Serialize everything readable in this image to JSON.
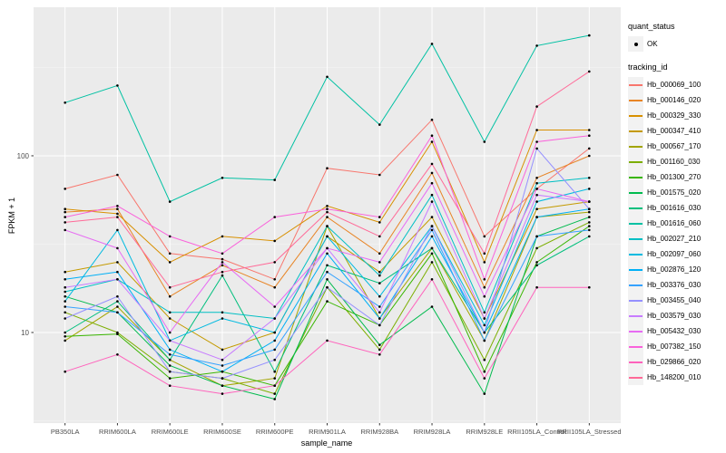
{
  "figure": {
    "background": "#FFFFFF",
    "panel_background": "#EBEBEB",
    "grid_major_color": "#FFFFFF",
    "grid_minor_color": "#FFFFFF",
    "axis_text_color": "#4D4D4D",
    "tick_color": "#333333"
  },
  "chart_data": {
    "type": "line",
    "title": "",
    "xlabel": "sample_name",
    "ylabel": "FPKM + 1",
    "y_scale": "log10",
    "y_ticks": [
      10,
      100
    ],
    "y_minor_ticks": [
      3.162,
      31.62,
      316.2
    ],
    "ylim": [
      3.07,
      693
    ],
    "grid": true,
    "legend_position": "right",
    "point_color": "#000000",
    "categories": [
      "PB350LA",
      "RRIM600LA",
      "RRIM600LE",
      "RRIM600SE",
      "RRIM600PE",
      "RRIM901LA",
      "RRIM928BA",
      "RRIM928LA",
      "RRIM928LE",
      "RRII105LA_Control",
      "RRII105LA_Stressed"
    ],
    "series": [
      {
        "name": "Hb_000069_100",
        "color": "#F8766D",
        "values": [
          65,
          78,
          28,
          26,
          20,
          85,
          78,
          160,
          35,
          65,
          110
        ]
      },
      {
        "name": "Hb_000146_020",
        "color": "#E88526",
        "values": [
          48,
          50,
          16,
          24,
          18,
          45,
          28,
          80,
          18,
          75,
          100
        ]
      },
      {
        "name": "Hb_000329_330",
        "color": "#D89000",
        "values": [
          50,
          47,
          25,
          35,
          33,
          52,
          42,
          120,
          25,
          140,
          140
        ]
      },
      {
        "name": "Hb_000347_410",
        "color": "#C49A00",
        "values": [
          22,
          25,
          12,
          8,
          10,
          35,
          22,
          45,
          12,
          50,
          55
        ]
      },
      {
        "name": "Hb_000567_170",
        "color": "#A3A500",
        "values": [
          9,
          14,
          7,
          5,
          5.5,
          40,
          12,
          30,
          9,
          45,
          48
        ]
      },
      {
        "name": "Hb_001160_030",
        "color": "#7CAE00",
        "values": [
          13,
          10,
          6,
          5.5,
          4.5,
          18,
          8,
          25,
          7,
          30,
          42
        ]
      },
      {
        "name": "Hb_001300_270",
        "color": "#39B600",
        "values": [
          9.5,
          9.8,
          5.5,
          6,
          5,
          15,
          11,
          28,
          6,
          25,
          40
        ]
      },
      {
        "name": "Hb_001575_020",
        "color": "#00BB4E",
        "values": [
          16,
          13,
          6.5,
          5,
          4.2,
          20,
          8.5,
          14,
          4.5,
          35,
          45
        ]
      },
      {
        "name": "Hb_001616_030",
        "color": "#00BF7D",
        "values": [
          10,
          15,
          7,
          21,
          6,
          24,
          19,
          30,
          10,
          24,
          35
        ]
      },
      {
        "name": "Hb_001616_060",
        "color": "#00C1A3",
        "values": [
          200,
          250,
          55,
          75,
          73,
          280,
          150,
          430,
          120,
          420,
          480
        ]
      },
      {
        "name": "Hb_002027_210",
        "color": "#00BFC4",
        "values": [
          17,
          20,
          13,
          13,
          12,
          40,
          21,
          60,
          13,
          70,
          75
        ]
      },
      {
        "name": "Hb_002097_060",
        "color": "#00BAE0",
        "values": [
          15,
          38,
          9,
          12,
          10,
          35,
          16,
          40,
          11,
          55,
          65
        ]
      },
      {
        "name": "Hb_002876_120",
        "color": "#00B0F6",
        "values": [
          20,
          22,
          8,
          6,
          9,
          28,
          12,
          35,
          10,
          45,
          50
        ]
      },
      {
        "name": "Hb_003376_030",
        "color": "#35A2FF",
        "values": [
          14,
          13,
          7.5,
          6.5,
          8,
          22,
          14,
          38,
          9,
          35,
          38
        ]
      },
      {
        "name": "Hb_003455_040",
        "color": "#9590FF",
        "values": [
          12,
          16,
          6,
          5.5,
          7,
          18,
          11,
          40,
          10,
          110,
          50
        ]
      },
      {
        "name": "Hb_003579_030",
        "color": "#C77CFF",
        "values": [
          18,
          20,
          9,
          7,
          12,
          30,
          13,
          55,
          12,
          60,
          55
        ]
      },
      {
        "name": "Hb_005432_030",
        "color": "#E76BF3",
        "values": [
          38,
          30,
          10,
          25,
          14,
          30,
          25,
          70,
          16,
          65,
          55
        ]
      },
      {
        "name": "Hb_007382_150",
        "color": "#FA62DB",
        "values": [
          45,
          52,
          35,
          28,
          45,
          50,
          45,
          130,
          20,
          120,
          130
        ]
      },
      {
        "name": "Hb_029866_020",
        "color": "#FF62BC",
        "values": [
          6,
          7.5,
          5,
          4.5,
          5,
          9,
          7.5,
          20,
          5.5,
          18,
          18
        ]
      },
      {
        "name": "Hb_148200_010",
        "color": "#FF6A98",
        "values": [
          42,
          45,
          18,
          22,
          25,
          48,
          35,
          90,
          28,
          190,
          300
        ]
      }
    ]
  },
  "legend": {
    "quant_status": {
      "title": "quant_status",
      "items": [
        {
          "label": "OK",
          "symbol": "point",
          "color": "#000000"
        }
      ]
    },
    "tracking_id": {
      "title": "tracking_id"
    }
  }
}
